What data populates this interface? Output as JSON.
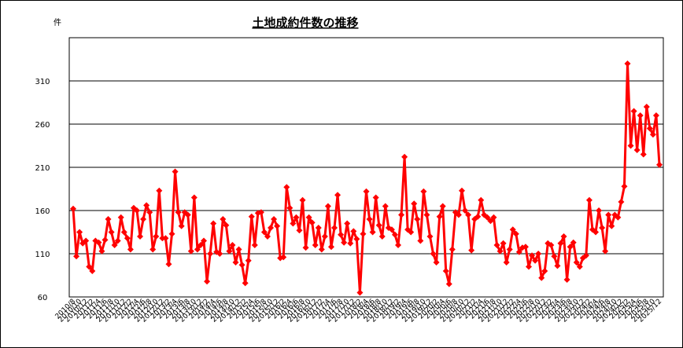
{
  "chart_data": {
    "type": "line",
    "title": "土地成約件数の推移",
    "y_unit_label": "件",
    "categories": [
      "2010/8",
      null,
      "2010/10",
      null,
      "2010/12",
      null,
      "2011/2",
      null,
      "2011/4",
      null,
      "2011/6",
      null,
      "2011/8",
      null,
      "2011/10",
      null,
      "2011/12",
      null,
      "2012/2",
      null,
      "2012/4",
      null,
      "2012/6",
      null,
      "2012/8",
      null,
      "2012/10",
      null,
      "2012/12",
      null,
      "2013/2",
      null,
      "2013/4",
      null,
      "2013/6",
      null,
      "2013/8",
      null,
      "2013/10",
      null,
      "2013/12",
      null,
      "2014/2",
      null,
      "2014/4",
      null,
      "2014/6",
      null,
      "2014/8",
      null,
      "2014/10",
      null,
      "2014/12",
      null,
      "2015/2",
      null,
      "2015/4",
      null,
      "2015/6",
      null,
      "2015/8",
      null,
      "2015/10",
      null,
      "2015/12",
      null,
      "2016/2",
      null,
      "2016/4",
      null,
      "2016/6",
      null,
      "2016/8",
      null,
      "2016/10",
      null,
      "2016/12",
      null,
      "2017/2",
      null,
      "2017/4",
      null,
      "2017/6",
      null,
      "2017/8",
      null,
      "2017/10",
      null,
      "2017/12",
      null,
      "2018/2",
      null,
      "2018/4",
      null,
      "2018/6",
      null,
      "2018/8",
      null,
      "2018/10",
      null,
      "2018/12",
      null,
      "2019/2",
      null,
      "2019/4",
      null,
      "2019/6",
      null,
      "2019/8",
      null,
      "2019/10",
      null,
      "2019/12",
      null,
      "2020/2",
      null,
      "2020/4",
      null,
      "2020/6",
      null,
      "2020/8",
      null,
      "2020/10",
      null,
      "2020/12",
      null,
      "2021/2",
      null,
      "2021/4",
      null,
      "2021/6",
      null,
      "2021/8",
      null,
      "2021/10",
      null,
      "2021/12",
      null,
      "2022/2",
      null,
      "2022/4",
      null,
      "2022/6",
      null,
      "2022/8",
      null,
      "2022/10",
      null,
      "2022/12",
      null,
      "2023/2",
      null,
      "2023/4",
      null,
      "2023/6",
      null,
      "2023/8",
      null,
      "2023/10",
      null,
      "2023/12",
      null,
      "2024/2",
      null,
      "2024/4",
      null,
      "2024/6",
      null,
      "2024/8",
      null,
      "2024/10",
      null,
      "2024/12",
      null,
      "2025/2",
      null,
      "2025/4",
      null,
      "2025/6",
      null,
      "2025/8",
      null,
      "2025/10",
      null,
      "2025/12"
    ],
    "values": [
      162,
      107,
      135,
      122,
      125,
      95,
      90,
      125,
      123,
      113,
      126,
      150,
      135,
      120,
      125,
      152,
      135,
      128,
      115,
      163,
      160,
      130,
      150,
      166,
      158,
      115,
      130,
      183,
      128,
      128,
      98,
      133,
      205,
      158,
      142,
      158,
      155,
      113,
      175,
      115,
      120,
      125,
      78,
      110,
      145,
      112,
      110,
      150,
      143,
      113,
      120,
      100,
      115,
      97,
      76,
      102,
      153,
      120,
      157,
      158,
      135,
      130,
      140,
      150,
      142,
      105,
      106,
      187,
      163,
      145,
      152,
      137,
      172,
      117,
      152,
      146,
      120,
      140,
      115,
      130,
      165,
      118,
      140,
      178,
      132,
      123,
      145,
      122,
      136,
      127,
      65,
      133,
      182,
      150,
      135,
      175,
      143,
      130,
      165,
      140,
      138,
      132,
      120,
      155,
      222,
      138,
      135,
      168,
      150,
      125,
      182,
      155,
      130,
      110,
      100,
      153,
      165,
      90,
      75,
      115,
      158,
      155,
      183,
      160,
      155,
      114,
      150,
      153,
      172,
      155,
      152,
      148,
      152,
      120,
      113,
      122,
      100,
      115,
      138,
      133,
      112,
      117,
      118,
      95,
      108,
      102,
      110,
      82,
      90,
      122,
      120,
      107,
      96,
      122,
      130,
      80,
      118,
      123,
      100,
      95,
      105,
      108,
      172,
      138,
      135,
      160,
      140,
      113,
      155,
      142,
      155,
      152,
      170,
      188,
      330,
      235,
      275,
      230,
      270,
      225,
      280,
      255,
      248,
      270,
      213
    ],
    "color": "#ff0000",
    "ylim": [
      60,
      360
    ],
    "yticks": [
      60,
      110,
      160,
      210,
      260,
      310
    ],
    "grid": true
  }
}
